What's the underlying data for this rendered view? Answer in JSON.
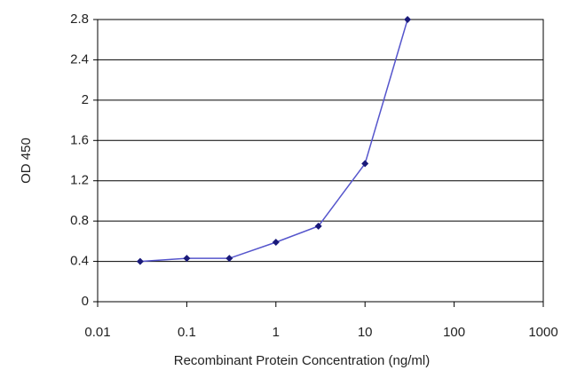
{
  "chart_data": {
    "type": "line",
    "xlabel": "Recombinant Protein Concentration (ng/ml)",
    "ylabel": "OD 450",
    "x": [
      0.03,
      0.1,
      0.3,
      1,
      3,
      10,
      30
    ],
    "series": [
      {
        "color": "#5555cc",
        "marker_color": "#1a1a7a",
        "values": [
          0.4,
          0.43,
          0.43,
          0.59,
          0.75,
          1.37,
          2.8
        ]
      }
    ],
    "xscale": "log",
    "xlim": [
      0.01,
      1000
    ],
    "xticks": [
      0.01,
      0.1,
      1,
      10,
      100,
      1000
    ],
    "ylim": [
      0,
      2.8
    ],
    "yticks": [
      0,
      0.4,
      0.8,
      1.2,
      1.6,
      2,
      2.4,
      2.8
    ],
    "grid": true
  }
}
